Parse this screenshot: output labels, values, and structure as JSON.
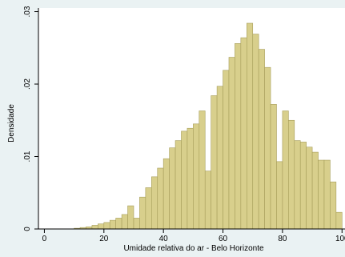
{
  "chart_data": {
    "type": "bar",
    "subtype": "histogram",
    "xlabel": "Umidade relativa do ar - Belo Horizonte",
    "ylabel": "Densidade",
    "xlim": [
      -2,
      101
    ],
    "ylim": [
      0,
      0.0305
    ],
    "x_ticks": [
      0,
      20,
      40,
      60,
      80,
      100
    ],
    "x_tick_labels": [
      "0",
      "20",
      "40",
      "60",
      "80",
      "100"
    ],
    "y_ticks": [
      0,
      0.01,
      0.02,
      0.03
    ],
    "y_tick_labels": [
      "0",
      ".01",
      ".02",
      ".03"
    ],
    "grid": false,
    "colors": {
      "bar_fill": "#d8cf8c",
      "bar_edge": "#a79e5b",
      "plot_background": "#ffffff",
      "page_background": "#eaf2f3"
    },
    "bin_width": 2,
    "bin_starts": [
      10,
      12,
      14,
      16,
      18,
      20,
      22,
      24,
      26,
      28,
      30,
      32,
      34,
      36,
      38,
      40,
      42,
      44,
      46,
      48,
      50,
      52,
      54,
      56,
      58,
      60,
      62,
      64,
      66,
      68,
      70,
      72,
      74,
      76,
      78,
      80,
      82,
      84,
      86,
      88,
      90,
      92,
      94,
      96,
      98
    ],
    "values": [
      0.0001,
      0.0002,
      0.0003,
      0.0005,
      0.0007,
      0.0009,
      0.0012,
      0.0015,
      0.002,
      0.0032,
      0.0015,
      0.0044,
      0.0057,
      0.0072,
      0.0084,
      0.0097,
      0.0112,
      0.0122,
      0.0135,
      0.0139,
      0.0145,
      0.0163,
      0.008,
      0.0184,
      0.0197,
      0.0219,
      0.0237,
      0.0256,
      0.0264,
      0.0284,
      0.0269,
      0.0248,
      0.0223,
      0.0172,
      0.0093,
      0.0163,
      0.015,
      0.0122,
      0.012,
      0.0113,
      0.0106,
      0.0095,
      0.0095,
      0.0065,
      0.0023
    ]
  }
}
